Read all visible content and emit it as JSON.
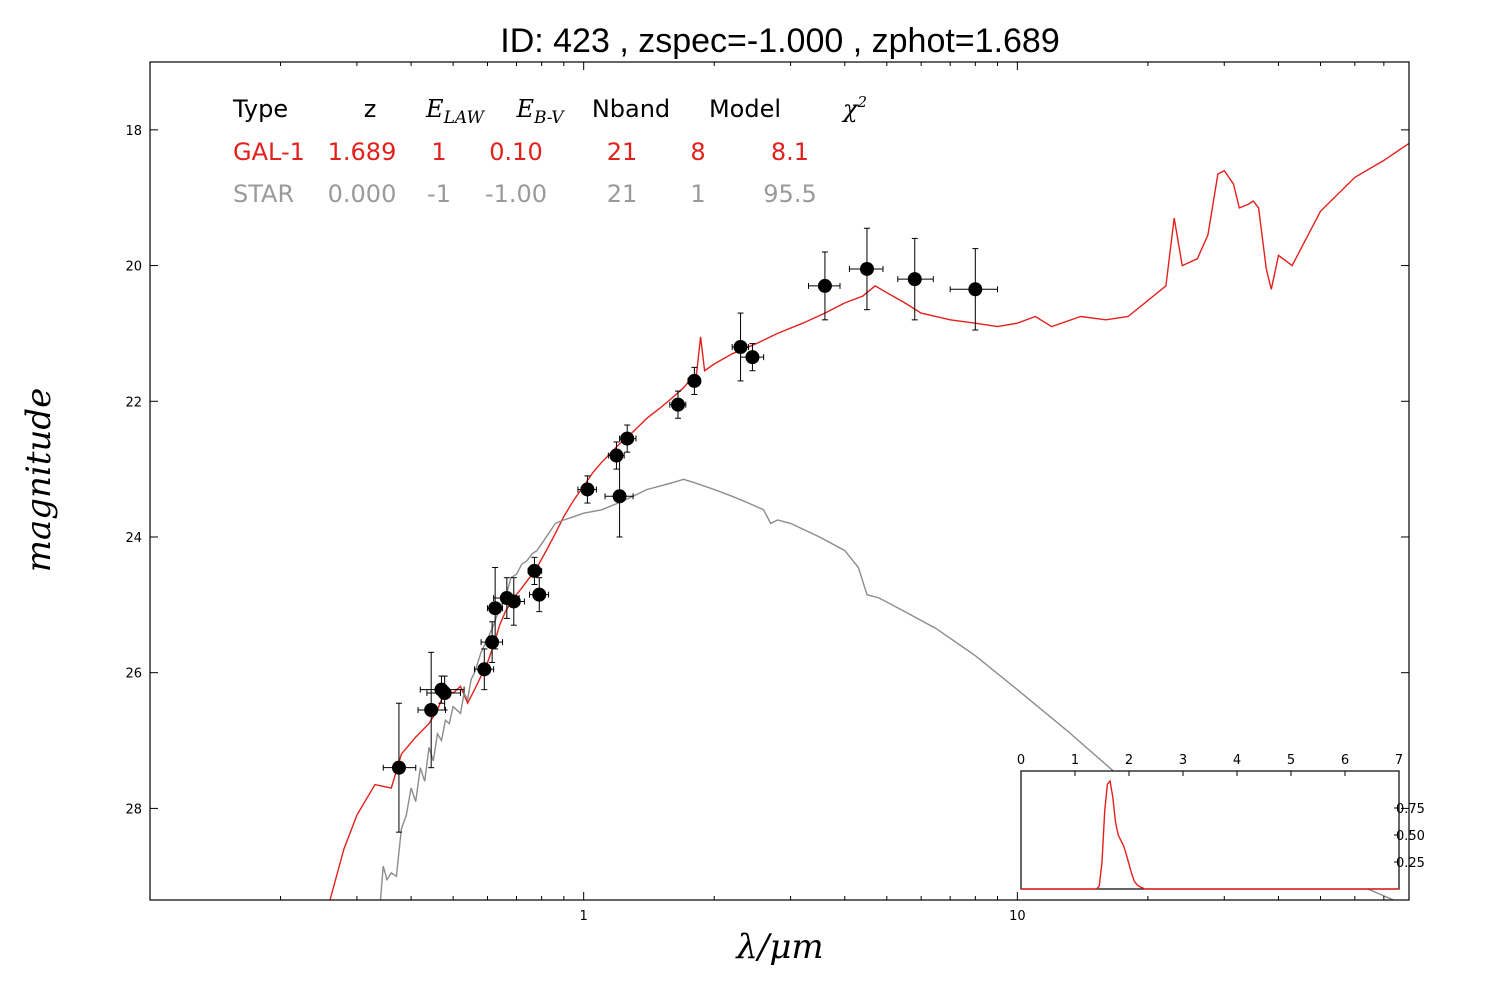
{
  "chart_data": {
    "type": "scatter",
    "title": "ID:  423   , zspec=-1.000 , zphot=1.689",
    "xlabel": "λ/μm",
    "ylabel": "magnitude",
    "xscale": "log",
    "xlim": [
      0.1,
      80
    ],
    "ylim": [
      29.35,
      17.0
    ],
    "y_inverted": true,
    "x_ticks": [
      {
        "value": 1,
        "label": "1"
      },
      {
        "value": 10,
        "label": "10"
      }
    ],
    "y_ticks": [
      {
        "value": 18,
        "label": "18"
      },
      {
        "value": 20,
        "label": "20"
      },
      {
        "value": 22,
        "label": "22"
      },
      {
        "value": 24,
        "label": "24"
      },
      {
        "value": 26,
        "label": "26"
      },
      {
        "value": 28,
        "label": "28"
      }
    ],
    "grid": false,
    "table": {
      "headers": [
        "Type",
        "z",
        "E_LAW",
        "E_B-V",
        "Nband",
        "Model",
        "χ²"
      ],
      "rows": [
        {
          "color": "#e3211c",
          "cells": [
            "GAL-1",
            "1.689",
            "1",
            "0.10",
            "21",
            "8",
            "8.1"
          ]
        },
        {
          "color": "#9a9a9a",
          "cells": [
            "STAR",
            "0.000",
            "-1",
            "-1.00",
            "21",
            "1",
            "95.5"
          ]
        }
      ]
    },
    "photometry": {
      "color": "#000000",
      "points": [
        {
          "x": 0.375,
          "y": 27.4,
          "xerr": [
            0.345,
            0.41
          ],
          "yerr": [
            26.45,
            28.35
          ]
        },
        {
          "x": 0.445,
          "y": 26.55,
          "xerr": [
            0.415,
            0.48
          ],
          "yerr": [
            25.7,
            27.4
          ]
        },
        {
          "x": 0.47,
          "y": 26.25,
          "xerr": [
            0.42,
            0.53
          ],
          "yerr": [
            26.05,
            26.45
          ]
        },
        {
          "x": 0.478,
          "y": 26.3,
          "xerr": [
            0.435,
            0.52
          ],
          "yerr": [
            26.05,
            26.55
          ]
        },
        {
          "x": 0.59,
          "y": 25.95,
          "xerr": [
            0.56,
            0.62
          ],
          "yerr": [
            25.65,
            26.25
          ]
        },
        {
          "x": 0.615,
          "y": 25.55,
          "xerr": [
            0.58,
            0.65
          ],
          "yerr": [
            25.25,
            25.85
          ]
        },
        {
          "x": 0.625,
          "y": 25.05,
          "xerr": [
            0.6,
            0.65
          ],
          "yerr": [
            24.45,
            25.65
          ]
        },
        {
          "x": 0.665,
          "y": 24.9,
          "xerr": [
            0.62,
            0.71
          ],
          "yerr": [
            24.6,
            25.2
          ]
        },
        {
          "x": 0.69,
          "y": 24.95,
          "xerr": [
            0.65,
            0.73
          ],
          "yerr": [
            24.6,
            25.3
          ]
        },
        {
          "x": 0.77,
          "y": 24.5,
          "xerr": [
            0.745,
            0.8
          ],
          "yerr": [
            24.3,
            24.7
          ]
        },
        {
          "x": 0.79,
          "y": 24.85,
          "xerr": [
            0.75,
            0.83
          ],
          "yerr": [
            24.6,
            25.1
          ]
        },
        {
          "x": 1.02,
          "y": 23.3,
          "xerr": [
            0.97,
            1.07
          ],
          "yerr": [
            23.1,
            23.5
          ]
        },
        {
          "x": 1.19,
          "y": 22.8,
          "xerr": [
            1.14,
            1.24
          ],
          "yerr": [
            22.6,
            23.0
          ]
        },
        {
          "x": 1.21,
          "y": 23.4,
          "xerr": [
            1.12,
            1.3
          ],
          "yerr": [
            22.8,
            24.0
          ]
        },
        {
          "x": 1.26,
          "y": 22.55,
          "xerr": [
            1.21,
            1.32
          ],
          "yerr": [
            22.35,
            22.75
          ]
        },
        {
          "x": 1.65,
          "y": 22.05,
          "xerr": [
            1.58,
            1.72
          ],
          "yerr": [
            21.85,
            22.25
          ]
        },
        {
          "x": 1.8,
          "y": 21.7,
          "xerr": [
            1.74,
            1.86
          ],
          "yerr": [
            21.5,
            21.9
          ]
        },
        {
          "x": 2.3,
          "y": 21.2,
          "xerr": [
            2.2,
            2.4
          ],
          "yerr": [
            20.7,
            21.7
          ]
        },
        {
          "x": 2.45,
          "y": 21.35,
          "xerr": [
            2.3,
            2.6
          ],
          "yerr": [
            21.15,
            21.55
          ]
        },
        {
          "x": 3.6,
          "y": 20.3,
          "xerr": [
            3.3,
            3.9
          ],
          "yerr": [
            19.8,
            20.8
          ]
        },
        {
          "x": 4.5,
          "y": 20.05,
          "xerr": [
            4.1,
            4.9
          ],
          "yerr": [
            19.45,
            20.65
          ]
        },
        {
          "x": 5.8,
          "y": 20.2,
          "xerr": [
            5.3,
            6.4
          ],
          "yerr": [
            19.6,
            20.8
          ]
        },
        {
          "x": 8.0,
          "y": 20.35,
          "xerr": [
            7.0,
            9.0
          ],
          "yerr": [
            19.75,
            20.95
          ]
        }
      ]
    },
    "series": [
      {
        "name": "GAL-1",
        "color": "#e3211c",
        "points": [
          [
            0.26,
            29.35
          ],
          [
            0.28,
            28.6
          ],
          [
            0.3,
            28.1
          ],
          [
            0.33,
            27.65
          ],
          [
            0.36,
            27.7
          ],
          [
            0.38,
            27.2
          ],
          [
            0.41,
            26.95
          ],
          [
            0.44,
            26.75
          ],
          [
            0.46,
            26.55
          ],
          [
            0.48,
            26.25
          ],
          [
            0.5,
            26.3
          ],
          [
            0.52,
            26.2
          ],
          [
            0.54,
            26.45
          ],
          [
            0.56,
            26.25
          ],
          [
            0.58,
            26.05
          ],
          [
            0.6,
            25.85
          ],
          [
            0.62,
            25.6
          ],
          [
            0.64,
            25.3
          ],
          [
            0.66,
            25.1
          ],
          [
            0.69,
            24.9
          ],
          [
            0.72,
            24.75
          ],
          [
            0.75,
            24.6
          ],
          [
            0.78,
            24.45
          ],
          [
            0.82,
            24.2
          ],
          [
            0.86,
            23.95
          ],
          [
            0.9,
            23.7
          ],
          [
            0.95,
            23.45
          ],
          [
            1.0,
            23.25
          ],
          [
            1.05,
            23.05
          ],
          [
            1.1,
            22.9
          ],
          [
            1.2,
            22.65
          ],
          [
            1.3,
            22.45
          ],
          [
            1.4,
            22.25
          ],
          [
            1.5,
            22.1
          ],
          [
            1.6,
            21.95
          ],
          [
            1.7,
            21.8
          ],
          [
            1.78,
            21.65
          ],
          [
            1.82,
            21.6
          ],
          [
            1.86,
            21.05
          ],
          [
            1.9,
            21.55
          ],
          [
            2.0,
            21.45
          ],
          [
            2.2,
            21.3
          ],
          [
            2.5,
            21.15
          ],
          [
            2.8,
            21.0
          ],
          [
            3.2,
            20.85
          ],
          [
            3.6,
            20.7
          ],
          [
            4.0,
            20.55
          ],
          [
            4.4,
            20.45
          ],
          [
            4.7,
            20.3
          ],
          [
            5.0,
            20.4
          ],
          [
            5.5,
            20.55
          ],
          [
            6.0,
            20.7
          ],
          [
            7.0,
            20.8
          ],
          [
            8.0,
            20.85
          ],
          [
            9.0,
            20.9
          ],
          [
            10.0,
            20.85
          ],
          [
            11.0,
            20.75
          ],
          [
            12.0,
            20.9
          ],
          [
            14.0,
            20.75
          ],
          [
            16.0,
            20.8
          ],
          [
            18.0,
            20.75
          ],
          [
            22.0,
            20.3
          ],
          [
            23.0,
            19.3
          ],
          [
            24.0,
            20.0
          ],
          [
            26.0,
            19.9
          ],
          [
            27.5,
            19.55
          ],
          [
            29.0,
            18.65
          ],
          [
            30.0,
            18.6
          ],
          [
            31.5,
            18.8
          ],
          [
            32.5,
            19.15
          ],
          [
            34.0,
            19.1
          ],
          [
            35.0,
            19.05
          ],
          [
            36.0,
            19.15
          ],
          [
            37.5,
            20.05
          ],
          [
            38.5,
            20.35
          ],
          [
            40.0,
            19.85
          ],
          [
            43.0,
            20.0
          ],
          [
            50.0,
            19.2
          ],
          [
            60.0,
            18.7
          ],
          [
            70.0,
            18.45
          ],
          [
            80.0,
            18.2
          ]
        ]
      },
      {
        "name": "STAR",
        "color": "#8c8c8c",
        "points": [
          [
            0.34,
            29.35
          ],
          [
            0.345,
            28.85
          ],
          [
            0.352,
            29.05
          ],
          [
            0.36,
            28.95
          ],
          [
            0.37,
            29.0
          ],
          [
            0.38,
            28.3
          ],
          [
            0.39,
            28.1
          ],
          [
            0.4,
            27.7
          ],
          [
            0.41,
            27.9
          ],
          [
            0.42,
            27.4
          ],
          [
            0.43,
            27.6
          ],
          [
            0.44,
            27.1
          ],
          [
            0.45,
            27.3
          ],
          [
            0.46,
            26.9
          ],
          [
            0.47,
            27.0
          ],
          [
            0.48,
            26.7
          ],
          [
            0.49,
            26.75
          ],
          [
            0.5,
            26.5
          ],
          [
            0.52,
            26.6
          ],
          [
            0.53,
            26.3
          ],
          [
            0.54,
            26.4
          ],
          [
            0.55,
            26.1
          ],
          [
            0.56,
            26.0
          ],
          [
            0.58,
            25.7
          ],
          [
            0.6,
            25.5
          ],
          [
            0.62,
            25.3
          ],
          [
            0.64,
            25.05
          ],
          [
            0.66,
            24.9
          ],
          [
            0.68,
            24.6
          ],
          [
            0.7,
            24.55
          ],
          [
            0.72,
            24.4
          ],
          [
            0.74,
            24.35
          ],
          [
            0.76,
            24.25
          ],
          [
            0.78,
            24.2
          ],
          [
            0.8,
            24.1
          ],
          [
            0.83,
            23.95
          ],
          [
            0.86,
            23.8
          ],
          [
            0.9,
            23.75
          ],
          [
            0.95,
            23.7
          ],
          [
            1.0,
            23.65
          ],
          [
            1.1,
            23.6
          ],
          [
            1.2,
            23.5
          ],
          [
            1.3,
            23.4
          ],
          [
            1.4,
            23.3
          ],
          [
            1.5,
            23.25
          ],
          [
            1.6,
            23.2
          ],
          [
            1.7,
            23.15
          ],
          [
            1.8,
            23.2
          ],
          [
            2.0,
            23.3
          ],
          [
            2.2,
            23.4
          ],
          [
            2.4,
            23.5
          ],
          [
            2.6,
            23.6
          ],
          [
            2.7,
            23.8
          ],
          [
            2.8,
            23.75
          ],
          [
            3.0,
            23.8
          ],
          [
            3.5,
            24.0
          ],
          [
            4.0,
            24.2
          ],
          [
            4.3,
            24.45
          ],
          [
            4.5,
            24.85
          ],
          [
            4.8,
            24.9
          ],
          [
            5.5,
            25.1
          ],
          [
            6.5,
            25.35
          ],
          [
            8.0,
            25.75
          ],
          [
            10.0,
            26.25
          ],
          [
            13.0,
            26.85
          ],
          [
            17.0,
            27.5
          ],
          [
            22.0,
            28.1
          ],
          [
            30.0,
            28.55
          ],
          [
            45.0,
            28.9
          ],
          [
            65.0,
            29.2
          ],
          [
            80.0,
            29.45
          ]
        ]
      }
    ],
    "inset": {
      "xlim": [
        0,
        7
      ],
      "ylim": [
        0,
        1.0
      ],
      "x_ticks": [
        {
          "value": 0,
          "label": "0"
        },
        {
          "value": 1,
          "label": "1"
        },
        {
          "value": 2,
          "label": "2"
        },
        {
          "value": 3,
          "label": "3"
        },
        {
          "value": 4,
          "label": "4"
        },
        {
          "value": 5,
          "label": "5"
        },
        {
          "value": 6,
          "label": "6"
        },
        {
          "value": 7,
          "label": "7"
        }
      ],
      "y_ticks": [
        {
          "value": 0.25,
          "label": "0.25"
        },
        {
          "value": 0.5,
          "label": "0.50"
        },
        {
          "value": 0.75,
          "label": "0.75"
        }
      ],
      "color": "#e3211c",
      "points": [
        [
          0.0,
          0.0
        ],
        [
          1.4,
          0.0
        ],
        [
          1.45,
          0.03
        ],
        [
          1.5,
          0.25
        ],
        [
          1.55,
          0.72
        ],
        [
          1.6,
          0.97
        ],
        [
          1.65,
          1.0
        ],
        [
          1.7,
          0.85
        ],
        [
          1.75,
          0.62
        ],
        [
          1.8,
          0.5
        ],
        [
          1.85,
          0.45
        ],
        [
          1.9,
          0.4
        ],
        [
          1.95,
          0.32
        ],
        [
          2.0,
          0.23
        ],
        [
          2.05,
          0.14
        ],
        [
          2.1,
          0.07
        ],
        [
          2.15,
          0.04
        ],
        [
          2.2,
          0.02
        ],
        [
          2.3,
          0.0
        ],
        [
          7.0,
          0.0
        ]
      ]
    }
  }
}
